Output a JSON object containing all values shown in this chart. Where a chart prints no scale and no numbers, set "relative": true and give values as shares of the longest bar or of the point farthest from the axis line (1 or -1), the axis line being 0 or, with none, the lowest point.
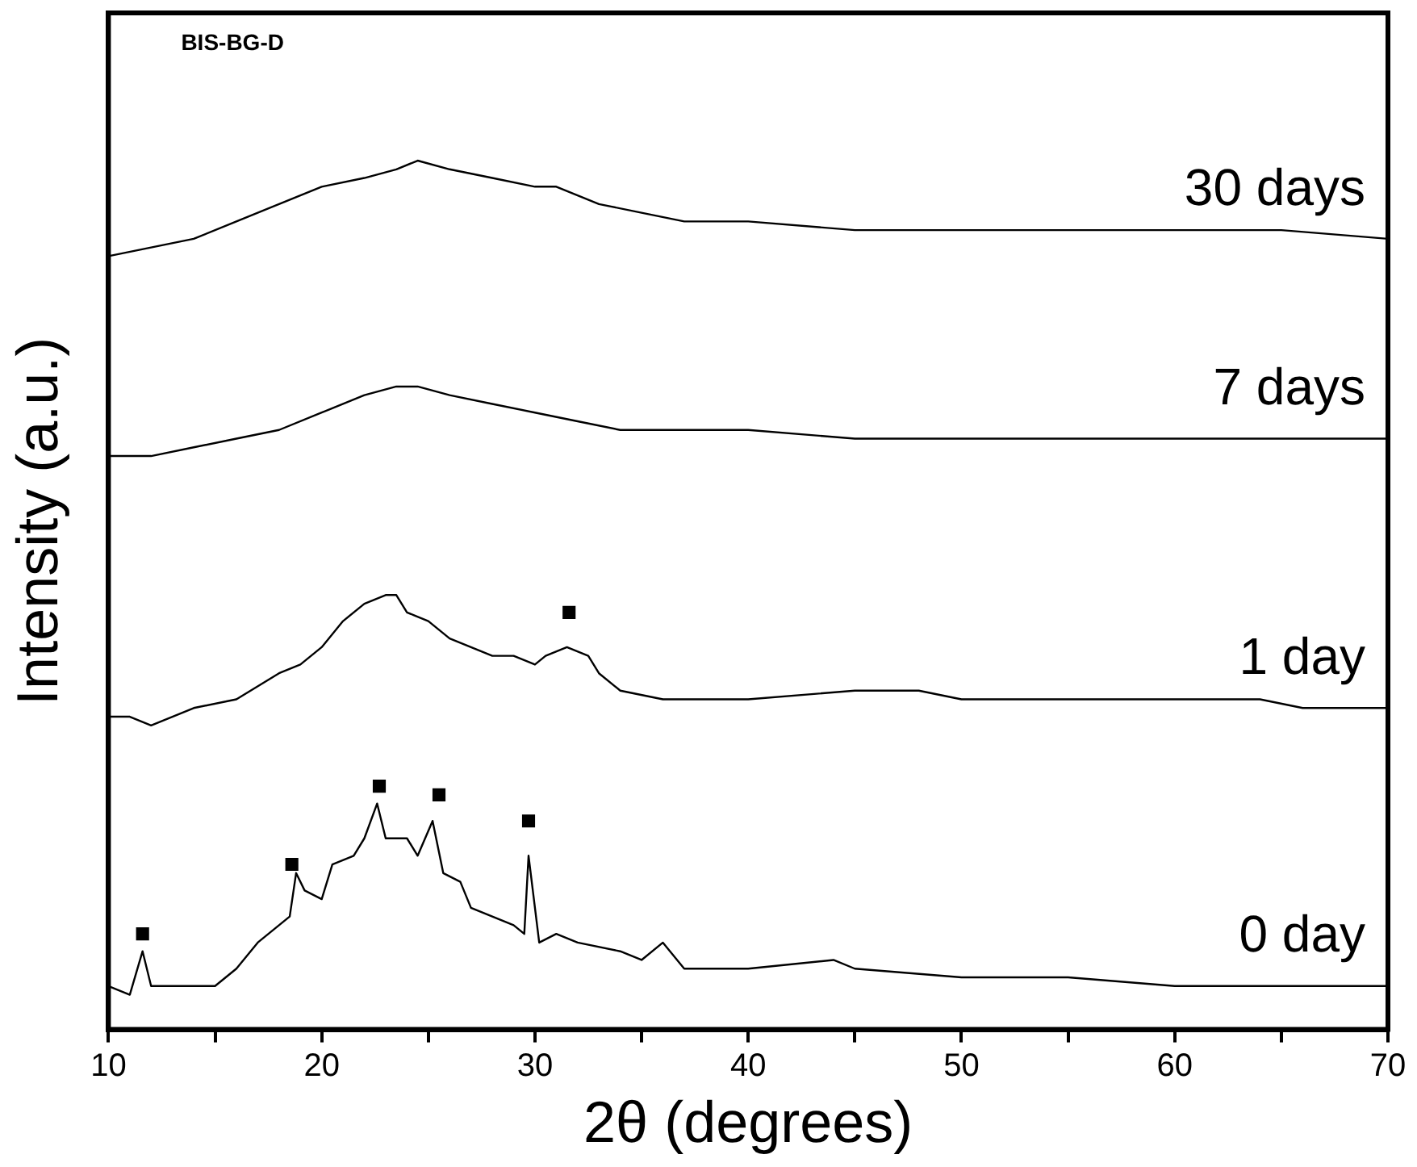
{
  "chart_data": {
    "type": "line",
    "relative": true,
    "xlabel": "2θ (degrees)",
    "ylabel": "Intensity (a.u.)",
    "annotations": [
      "BIS-BG-D"
    ],
    "xlim": [
      10,
      70
    ],
    "xticks": [
      10,
      {
        "value": 15,
        "label": null
      },
      20,
      {
        "value": 25,
        "label": null
      },
      30,
      {
        "value": 35,
        "label": null
      },
      40,
      {
        "value": 45,
        "label": null
      },
      50,
      {
        "value": 55,
        "label": null
      },
      60,
      {
        "value": 65,
        "label": null
      },
      70
    ],
    "grid": false,
    "legend": false,
    "series": [
      {
        "name": "0 day",
        "color": "#000000",
        "x": [
          10,
          11,
          11.6,
          12,
          13,
          14,
          15,
          16,
          17,
          18,
          18.5,
          18.8,
          19.2,
          20,
          20.5,
          21.5,
          22,
          22.6,
          23,
          24,
          24.5,
          25.2,
          25.7,
          26.5,
          27,
          28,
          29,
          29.5,
          29.7,
          30.2,
          31,
          32,
          34,
          35,
          36,
          37,
          40,
          44,
          45,
          50,
          55,
          60,
          65,
          70
        ],
        "values": [
          0.05,
          0.04,
          0.09,
          0.05,
          0.05,
          0.05,
          0.05,
          0.07,
          0.1,
          0.12,
          0.13,
          0.18,
          0.16,
          0.15,
          0.19,
          0.2,
          0.22,
          0.26,
          0.22,
          0.22,
          0.2,
          0.24,
          0.18,
          0.17,
          0.14,
          0.13,
          0.12,
          0.11,
          0.2,
          0.1,
          0.11,
          0.1,
          0.09,
          0.08,
          0.1,
          0.07,
          0.07,
          0.08,
          0.07,
          0.06,
          0.06,
          0.05,
          0.05,
          0.05
        ]
      },
      {
        "name": "1 day",
        "color": "#000000",
        "x": [
          10,
          11,
          12,
          14,
          16,
          18,
          19,
          20,
          21,
          22,
          23,
          23.5,
          24,
          25,
          26,
          27,
          28,
          29,
          30,
          30.5,
          31.5,
          32.5,
          33,
          34,
          36,
          40,
          45,
          48,
          50,
          55,
          60,
          64,
          66,
          70
        ],
        "values": [
          0.36,
          0.36,
          0.35,
          0.37,
          0.38,
          0.41,
          0.42,
          0.44,
          0.47,
          0.49,
          0.5,
          0.5,
          0.48,
          0.47,
          0.45,
          0.44,
          0.43,
          0.43,
          0.42,
          0.43,
          0.44,
          0.43,
          0.41,
          0.39,
          0.38,
          0.38,
          0.39,
          0.39,
          0.38,
          0.38,
          0.38,
          0.38,
          0.37,
          0.37
        ]
      },
      {
        "name": "7 days",
        "color": "#000000",
        "x": [
          10,
          12,
          14,
          16,
          18,
          20,
          22,
          23.5,
          24.5,
          26,
          28,
          30,
          32,
          34,
          36,
          40,
          45,
          50,
          55,
          60,
          65,
          70
        ],
        "values": [
          0.66,
          0.66,
          0.67,
          0.68,
          0.69,
          0.71,
          0.73,
          0.74,
          0.74,
          0.73,
          0.72,
          0.71,
          0.7,
          0.69,
          0.69,
          0.69,
          0.68,
          0.68,
          0.68,
          0.68,
          0.68,
          0.68
        ]
      },
      {
        "name": "30 days",
        "color": "#000000",
        "x": [
          10,
          12,
          14,
          16,
          18,
          20,
          22,
          23.5,
          24.5,
          26,
          28,
          30,
          31,
          32,
          33,
          35,
          37,
          40,
          45,
          50,
          55,
          60,
          65,
          70
        ],
        "values": [
          0.89,
          0.9,
          0.91,
          0.93,
          0.95,
          0.97,
          0.98,
          0.99,
          1,
          0.99,
          0.98,
          0.97,
          0.97,
          0.96,
          0.95,
          0.94,
          0.93,
          0.93,
          0.92,
          0.92,
          0.92,
          0.92,
          0.92,
          0.91
        ]
      },
      {
        "type": "scatter",
        "marker": "square",
        "color": "#000000",
        "x": [
          11.6,
          18.6,
          22.7,
          25.5,
          29.7,
          31.6
        ],
        "values": [
          0.11,
          0.19,
          0.28,
          0.27,
          0.24,
          0.48
        ]
      }
    ]
  }
}
